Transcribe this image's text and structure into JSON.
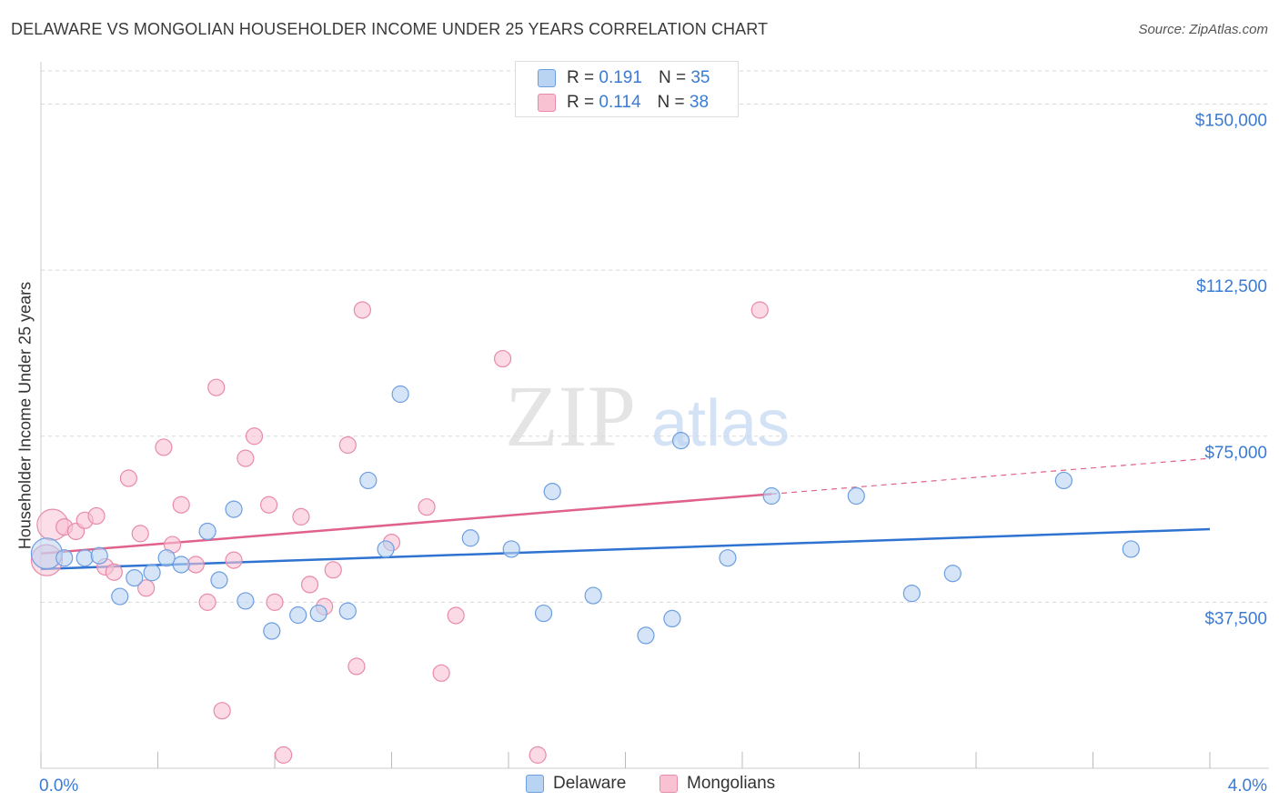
{
  "header": {
    "title": "DELAWARE VS MONGOLIAN HOUSEHOLDER INCOME UNDER 25 YEARS CORRELATION CHART",
    "source": "Source: ZipAtlas.com"
  },
  "watermark": {
    "part1": "ZIP",
    "part2": "atlas"
  },
  "legend_top": {
    "r_label": "R =",
    "n_label": "N =",
    "delaware": {
      "r": "0.191",
      "n": "35"
    },
    "mongolians": {
      "r": "0.114",
      "n": "38"
    }
  },
  "legend_bottom": {
    "delaware": "Delaware",
    "mongolians": "Mongolians"
  },
  "colors": {
    "delaware_fill": "#b9d3f2",
    "delaware_stroke": "#6d9ee0",
    "delaware_line": "#2f73d0",
    "mongolians_fill": "#f8c2d3",
    "mongolians_stroke": "#e88aa9",
    "mongolians_line": "#e0628a",
    "tick_label": "#3a7bd5",
    "grid": "#d8d8d8"
  },
  "chart_data": {
    "type": "scatter",
    "title": "DELAWARE VS MONGOLIAN HOUSEHOLDER INCOME UNDER 25 YEARS CORRELATION CHART",
    "xlabel": "",
    "ylabel": "Householder Income Under 25 years",
    "xlim": [
      0.0,
      4.0
    ],
    "ylim": [
      0,
      157500
    ],
    "x_tick_labels": [
      "0.0%",
      "4.0%"
    ],
    "y_ticks": [
      37500,
      75000,
      112500,
      150000
    ],
    "y_tick_labels": [
      "$37,500",
      "$75,000",
      "$112,500",
      "$150,000"
    ],
    "grid": true,
    "legend_position": "top-center",
    "series": [
      {
        "name": "Delaware",
        "r": 0.191,
        "n": 35,
        "trend": {
          "x": [
            0.0,
            4.0
          ],
          "y": [
            45000,
            54000
          ],
          "dashed_from": null
        },
        "points": [
          {
            "x": 0.02,
            "y": 48500,
            "big": true
          },
          {
            "x": 0.08,
            "y": 47500
          },
          {
            "x": 0.15,
            "y": 47500
          },
          {
            "x": 0.2,
            "y": 48000
          },
          {
            "x": 0.27,
            "y": 38800
          },
          {
            "x": 0.32,
            "y": 43000
          },
          {
            "x": 0.38,
            "y": 44200
          },
          {
            "x": 0.43,
            "y": 47500
          },
          {
            "x": 0.48,
            "y": 46000
          },
          {
            "x": 0.57,
            "y": 53500
          },
          {
            "x": 0.61,
            "y": 42500
          },
          {
            "x": 0.66,
            "y": 58500
          },
          {
            "x": 0.7,
            "y": 37800
          },
          {
            "x": 0.79,
            "y": 31000
          },
          {
            "x": 0.88,
            "y": 34600
          },
          {
            "x": 0.95,
            "y": 35000
          },
          {
            "x": 1.05,
            "y": 35500
          },
          {
            "x": 1.12,
            "y": 65000
          },
          {
            "x": 1.18,
            "y": 49500
          },
          {
            "x": 1.23,
            "y": 84500
          },
          {
            "x": 1.47,
            "y": 52000
          },
          {
            "x": 1.61,
            "y": 49500
          },
          {
            "x": 1.72,
            "y": 35000
          },
          {
            "x": 1.75,
            "y": 62500
          },
          {
            "x": 1.89,
            "y": 39000
          },
          {
            "x": 2.07,
            "y": 30000
          },
          {
            "x": 2.16,
            "y": 33800
          },
          {
            "x": 2.19,
            "y": 74000
          },
          {
            "x": 2.35,
            "y": 47500
          },
          {
            "x": 2.5,
            "y": 61500
          },
          {
            "x": 2.79,
            "y": 61500
          },
          {
            "x": 2.98,
            "y": 39500
          },
          {
            "x": 3.12,
            "y": 44000
          },
          {
            "x": 3.5,
            "y": 65000
          },
          {
            "x": 3.73,
            "y": 49500
          }
        ]
      },
      {
        "name": "Mongolians",
        "r": 0.114,
        "n": 38,
        "trend": {
          "x": [
            0.0,
            4.0
          ],
          "y": [
            48500,
            70000
          ],
          "dashed_from": 2.5
        },
        "points": [
          {
            "x": 0.02,
            "y": 47000,
            "big": true
          },
          {
            "x": 0.04,
            "y": 55000,
            "big": true
          },
          {
            "x": 0.08,
            "y": 54500
          },
          {
            "x": 0.12,
            "y": 53500
          },
          {
            "x": 0.15,
            "y": 56000
          },
          {
            "x": 0.19,
            "y": 57000
          },
          {
            "x": 0.22,
            "y": 45500
          },
          {
            "x": 0.25,
            "y": 44300
          },
          {
            "x": 0.3,
            "y": 65500
          },
          {
            "x": 0.34,
            "y": 53000
          },
          {
            "x": 0.36,
            "y": 40700
          },
          {
            "x": 0.42,
            "y": 72500
          },
          {
            "x": 0.45,
            "y": 50500
          },
          {
            "x": 0.48,
            "y": 59500
          },
          {
            "x": 0.53,
            "y": 46000
          },
          {
            "x": 0.57,
            "y": 37500
          },
          {
            "x": 0.6,
            "y": 86000
          },
          {
            "x": 0.62,
            "y": 13000
          },
          {
            "x": 0.66,
            "y": 47000
          },
          {
            "x": 0.7,
            "y": 70000
          },
          {
            "x": 0.73,
            "y": 75000
          },
          {
            "x": 0.78,
            "y": 59500
          },
          {
            "x": 0.8,
            "y": 37500
          },
          {
            "x": 0.83,
            "y": 3000
          },
          {
            "x": 0.89,
            "y": 56800
          },
          {
            "x": 0.92,
            "y": 41500
          },
          {
            "x": 0.97,
            "y": 36500
          },
          {
            "x": 1.0,
            "y": 44800
          },
          {
            "x": 1.05,
            "y": 73000
          },
          {
            "x": 1.08,
            "y": 23000
          },
          {
            "x": 1.1,
            "y": 103500
          },
          {
            "x": 1.2,
            "y": 51000
          },
          {
            "x": 1.32,
            "y": 59000
          },
          {
            "x": 1.37,
            "y": 21500
          },
          {
            "x": 1.42,
            "y": 34500
          },
          {
            "x": 1.58,
            "y": 92500
          },
          {
            "x": 1.7,
            "y": 3000
          },
          {
            "x": 2.46,
            "y": 103500
          }
        ]
      }
    ]
  }
}
